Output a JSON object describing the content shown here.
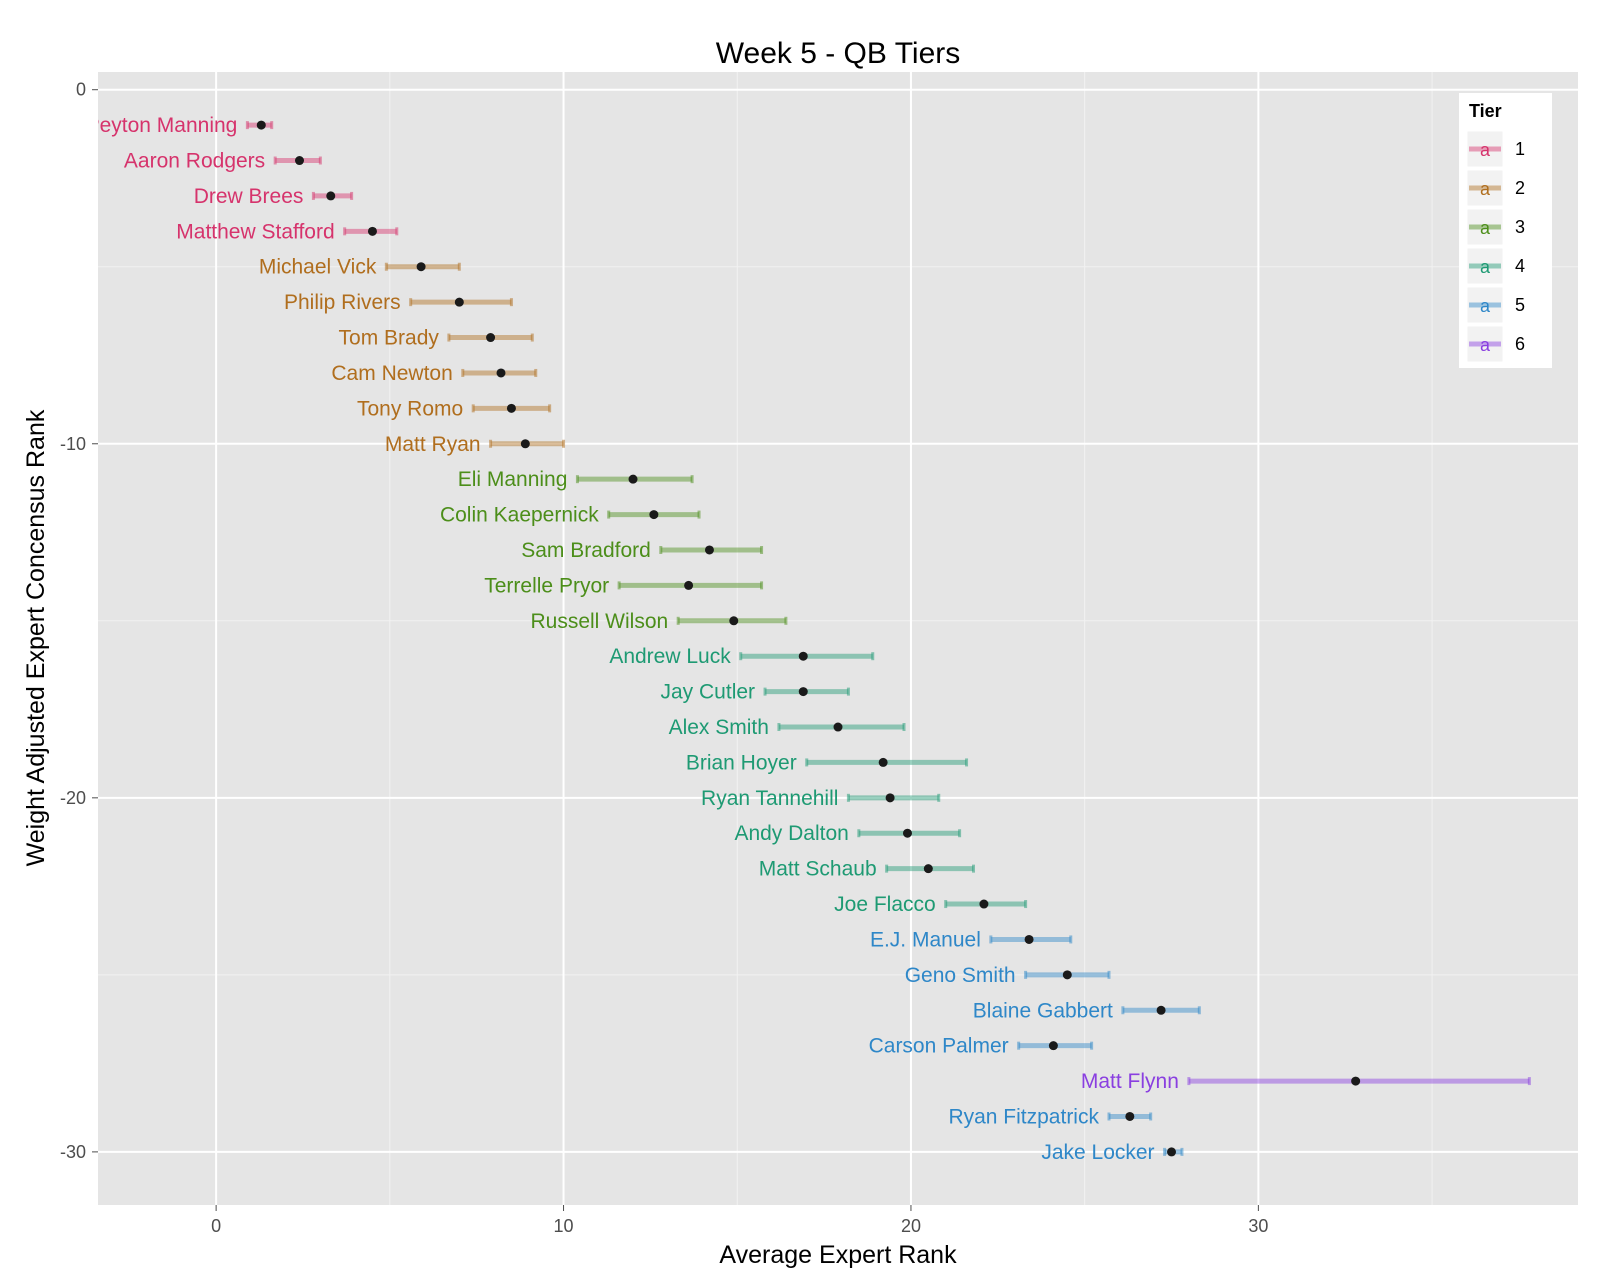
{
  "chart_data": {
    "type": "errorbar",
    "title": "Week 5 - QB Tiers",
    "xlabel": "Average Expert Rank",
    "ylabel": "Weight Adjusted Expert Concensus Rank",
    "xlim": [
      -3.4,
      39.2
    ],
    "ylim": [
      -31.5,
      0.5
    ],
    "x_ticks": [
      0,
      10,
      20,
      30
    ],
    "y_ticks": [
      0,
      -10,
      -20,
      -30
    ],
    "grid": true,
    "legend": {
      "title": "Tier",
      "position": "top-right",
      "key_glyph": "a",
      "entries": [
        {
          "tier": "1",
          "color": "#D6336C"
        },
        {
          "tier": "2",
          "color": "#B06E1E"
        },
        {
          "tier": "3",
          "color": "#4C8E1A"
        },
        {
          "tier": "4",
          "color": "#1E9A73"
        },
        {
          "tier": "5",
          "color": "#2E87C8"
        },
        {
          "tier": "6",
          "color": "#8A3FE0"
        }
      ]
    },
    "players": [
      {
        "name": "Peyton Manning",
        "tier": "1",
        "rank": -1,
        "mean": 1.3,
        "low": 0.9,
        "high": 1.6
      },
      {
        "name": "Aaron Rodgers",
        "tier": "1",
        "rank": -2,
        "mean": 2.4,
        "low": 1.7,
        "high": 3.0
      },
      {
        "name": "Drew Brees",
        "tier": "1",
        "rank": -3,
        "mean": 3.3,
        "low": 2.8,
        "high": 3.9
      },
      {
        "name": "Matthew Stafford",
        "tier": "1",
        "rank": -4,
        "mean": 4.5,
        "low": 3.7,
        "high": 5.2
      },
      {
        "name": "Michael Vick",
        "tier": "2",
        "rank": -5,
        "mean": 5.9,
        "low": 4.9,
        "high": 7.0
      },
      {
        "name": "Philip Rivers",
        "tier": "2",
        "rank": -6,
        "mean": 7.0,
        "low": 5.6,
        "high": 8.5
      },
      {
        "name": "Tom Brady",
        "tier": "2",
        "rank": -7,
        "mean": 7.9,
        "low": 6.7,
        "high": 9.1
      },
      {
        "name": "Cam Newton",
        "tier": "2",
        "rank": -8,
        "mean": 8.2,
        "low": 7.1,
        "high": 9.2
      },
      {
        "name": "Tony Romo",
        "tier": "2",
        "rank": -9,
        "mean": 8.5,
        "low": 7.4,
        "high": 9.6
      },
      {
        "name": "Matt Ryan",
        "tier": "2",
        "rank": -10,
        "mean": 8.9,
        "low": 7.9,
        "high": 10.0
      },
      {
        "name": "Eli Manning",
        "tier": "3",
        "rank": -11,
        "mean": 12.0,
        "low": 10.4,
        "high": 13.7
      },
      {
        "name": "Colin Kaepernick",
        "tier": "3",
        "rank": -12,
        "mean": 12.6,
        "low": 11.3,
        "high": 13.9
      },
      {
        "name": "Sam Bradford",
        "tier": "3",
        "rank": -13,
        "mean": 14.2,
        "low": 12.8,
        "high": 15.7
      },
      {
        "name": "Terrelle Pryor",
        "tier": "3",
        "rank": -14,
        "mean": 13.6,
        "low": 11.6,
        "high": 15.7
      },
      {
        "name": "Russell Wilson",
        "tier": "3",
        "rank": -15,
        "mean": 14.9,
        "low": 13.3,
        "high": 16.4
      },
      {
        "name": "Andrew Luck",
        "tier": "4",
        "rank": -16,
        "mean": 16.9,
        "low": 15.1,
        "high": 18.9
      },
      {
        "name": "Jay Cutler",
        "tier": "4",
        "rank": -17,
        "mean": 16.9,
        "low": 15.8,
        "high": 18.2
      },
      {
        "name": "Alex Smith",
        "tier": "4",
        "rank": -18,
        "mean": 17.9,
        "low": 16.2,
        "high": 19.8
      },
      {
        "name": "Brian Hoyer",
        "tier": "4",
        "rank": -19,
        "mean": 19.2,
        "low": 17.0,
        "high": 21.6
      },
      {
        "name": "Ryan Tannehill",
        "tier": "4",
        "rank": -20,
        "mean": 19.4,
        "low": 18.2,
        "high": 20.8
      },
      {
        "name": "Andy Dalton",
        "tier": "4",
        "rank": -21,
        "mean": 19.9,
        "low": 18.5,
        "high": 21.4
      },
      {
        "name": "Matt Schaub",
        "tier": "4",
        "rank": -22,
        "mean": 20.5,
        "low": 19.3,
        "high": 21.8
      },
      {
        "name": "Joe Flacco",
        "tier": "4",
        "rank": -23,
        "mean": 22.1,
        "low": 21.0,
        "high": 23.3
      },
      {
        "name": "E.J. Manuel",
        "tier": "5",
        "rank": -24,
        "mean": 23.4,
        "low": 22.3,
        "high": 24.6
      },
      {
        "name": "Geno Smith",
        "tier": "5",
        "rank": -25,
        "mean": 24.5,
        "low": 23.3,
        "high": 25.7
      },
      {
        "name": "Blaine Gabbert",
        "tier": "5",
        "rank": -26,
        "mean": 27.2,
        "low": 26.1,
        "high": 28.3
      },
      {
        "name": "Carson Palmer",
        "tier": "5",
        "rank": -27,
        "mean": 24.1,
        "low": 23.1,
        "high": 25.2
      },
      {
        "name": "Matt Flynn",
        "tier": "6",
        "rank": -28,
        "mean": 32.8,
        "low": 28.0,
        "high": 37.8
      },
      {
        "name": "Ryan Fitzpatrick",
        "tier": "5",
        "rank": -29,
        "mean": 26.3,
        "low": 25.7,
        "high": 26.9
      },
      {
        "name": "Jake Locker",
        "tier": "5",
        "rank": -30,
        "mean": 27.5,
        "low": 27.3,
        "high": 27.8
      }
    ]
  }
}
